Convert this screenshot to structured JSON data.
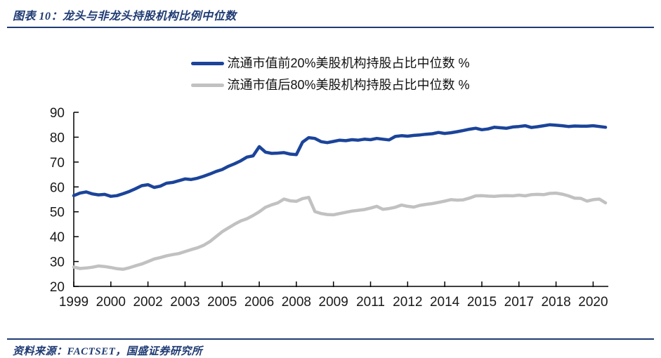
{
  "header": {
    "title": "图表 10：龙头与非龙头持股机构比例中位数"
  },
  "footer": {
    "source": "资料来源：FACTSET，国盛证券研究所"
  },
  "colors": {
    "accent_navy": "#1f3b73",
    "series_top20_blue": "#1b449a",
    "series_bottom80_gray": "#c1c1c1",
    "axis_line": "#000000",
    "axis_text": "#1a1a1a"
  },
  "chart_data": {
    "type": "line",
    "title": "龙头与非龙头持股机构比例中位数",
    "x_unit": "quarter",
    "x_start": "1999Q1",
    "x_end": "2020Q3",
    "x_tick_every": 6,
    "x_tick_labels": [
      "1999",
      "2000",
      "2002",
      "2003",
      "2005",
      "2006",
      "2008",
      "2009",
      "2011",
      "2012",
      "2014",
      "2015",
      "2017",
      "2018",
      "2020"
    ],
    "ylim": [
      20,
      90
    ],
    "y_ticks": [
      20,
      30,
      40,
      50,
      60,
      70,
      80,
      90
    ],
    "grid": false,
    "legend_position": "top-center",
    "legend": [
      {
        "key": "top20",
        "name": "流通市值前20%美股机构持股占比中位数 %",
        "color": "#1b449a"
      },
      {
        "key": "bottom80",
        "name": "流通市值后80%美股机构持股占比中位数 %",
        "color": "#c1c1c1"
      }
    ],
    "series": [
      {
        "key": "top20",
        "name": "流通市值前20%美股机构持股占比中位数 %",
        "values": [
          56.5,
          57.5,
          58.0,
          57.2,
          56.8,
          57.0,
          56.2,
          56.5,
          57.3,
          58.2,
          59.3,
          60.5,
          60.9,
          59.8,
          60.3,
          61.5,
          61.8,
          62.5,
          63.2,
          63.0,
          63.5,
          64.3,
          65.2,
          66.2,
          67.0,
          68.3,
          69.3,
          70.5,
          72.0,
          72.5,
          76.2,
          74.0,
          73.5,
          73.6,
          73.8,
          73.2,
          73.0,
          78.0,
          79.8,
          79.5,
          78.2,
          77.8,
          78.3,
          78.8,
          78.6,
          79.0,
          78.8,
          79.2,
          79.0,
          79.5,
          79.2,
          78.9,
          80.3,
          80.6,
          80.4,
          80.7,
          80.9,
          81.2,
          81.4,
          81.9,
          81.5,
          81.8,
          82.2,
          82.7,
          83.2,
          83.6,
          83.0,
          83.3,
          84.0,
          83.8,
          83.6,
          84.1,
          84.3,
          84.6,
          83.9,
          84.2,
          84.6,
          85.0,
          84.8,
          84.6,
          84.3,
          84.5,
          84.4,
          84.4,
          84.6,
          84.3,
          84.0
        ]
      },
      {
        "key": "bottom80",
        "name": "流通市值后80%美股机构持股占比中位数 %",
        "values": [
          27.8,
          27.2,
          27.4,
          27.7,
          28.2,
          28.0,
          27.6,
          27.1,
          26.9,
          27.5,
          28.3,
          29.0,
          30.0,
          31.0,
          31.6,
          32.3,
          32.8,
          33.2,
          34.0,
          34.8,
          35.5,
          36.5,
          38.0,
          40.0,
          42.0,
          43.5,
          45.0,
          46.3,
          47.2,
          48.5,
          50.0,
          51.8,
          52.8,
          53.6,
          55.1,
          54.4,
          54.2,
          55.3,
          55.8,
          50.1,
          49.3,
          48.9,
          48.8,
          49.3,
          49.8,
          50.3,
          50.6,
          50.9,
          51.5,
          52.2,
          51.0,
          51.3,
          51.8,
          52.7,
          52.2,
          51.9,
          52.6,
          53.0,
          53.3,
          53.8,
          54.3,
          54.9,
          54.7,
          54.8,
          55.5,
          56.4,
          56.5,
          56.3,
          56.2,
          56.4,
          56.5,
          56.4,
          56.7,
          56.4,
          56.9,
          57.0,
          56.9,
          57.4,
          57.5,
          57.1,
          56.4,
          55.5,
          55.4,
          54.3,
          54.9,
          55.1,
          53.6
        ]
      }
    ]
  }
}
